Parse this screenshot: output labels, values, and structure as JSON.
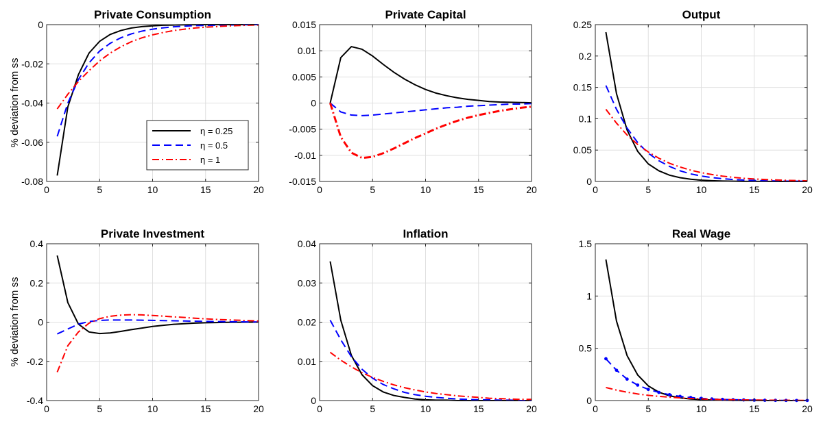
{
  "figure": {
    "ylabel": "% deviation from ss",
    "legend": {
      "entries": [
        "η = 0.25",
        "η = 0.5",
        "η = 1"
      ]
    },
    "series_styles": [
      {
        "color": "#000000",
        "dash": "solid"
      },
      {
        "color": "#0000ff",
        "dash": "dashed"
      },
      {
        "color": "#ff0000",
        "dash": "dashdot"
      }
    ]
  },
  "chart_data": [
    {
      "type": "line",
      "title": "Private Consumption",
      "xlim": [
        0,
        20
      ],
      "ylim": [
        -0.08,
        0
      ],
      "xticks": [
        "0",
        "5",
        "10",
        "15",
        "20"
      ],
      "yticks": [
        -0.08,
        -0.06,
        -0.04,
        -0.02,
        0
      ],
      "ytick_labels": [
        "-0.08",
        "-0.06",
        "-0.04",
        "-0.02",
        "0"
      ],
      "x": [
        1,
        2,
        3,
        4,
        5,
        6,
        7,
        8,
        9,
        10,
        11,
        12,
        13,
        14,
        15,
        16,
        17,
        18,
        19,
        20
      ],
      "series": [
        {
          "name": "η = 0.25",
          "values": [
            -0.077,
            -0.042,
            -0.0255,
            -0.0145,
            -0.0085,
            -0.005,
            -0.003,
            -0.0017,
            -0.001,
            -0.0006,
            -0.0003,
            -0.0002,
            -0.0001,
            -5e-05,
            0,
            0,
            0,
            0,
            0,
            0
          ]
        },
        {
          "name": "η = 0.5",
          "values": [
            -0.057,
            -0.04,
            -0.028,
            -0.0195,
            -0.0135,
            -0.0095,
            -0.0067,
            -0.0047,
            -0.0033,
            -0.0023,
            -0.0016,
            -0.0011,
            -0.0008,
            -0.0005,
            -0.0004,
            -0.0003,
            -0.0002,
            -0.0001,
            -5e-05,
            0
          ]
        },
        {
          "name": "η = 1",
          "values": [
            -0.043,
            -0.0355,
            -0.029,
            -0.0235,
            -0.0185,
            -0.0145,
            -0.0113,
            -0.0087,
            -0.0067,
            -0.0052,
            -0.004,
            -0.003,
            -0.0023,
            -0.0017,
            -0.0013,
            -0.001,
            -0.0007,
            -0.0005,
            -0.0003,
            -0.0002
          ]
        }
      ],
      "legend_location": "lower-right"
    },
    {
      "type": "line",
      "title": "Private Capital",
      "xlim": [
        0,
        20
      ],
      "ylim": [
        -0.015,
        0.015
      ],
      "xticks": [
        "0",
        "5",
        "10",
        "15",
        "20"
      ],
      "yticks": [
        -0.015,
        -0.01,
        -0.005,
        0,
        0.005,
        0.01,
        0.015
      ],
      "ytick_labels": [
        "-0.015",
        "-0.01",
        "-0.005",
        "0",
        "0.005",
        "0.01",
        "0.015"
      ],
      "x": [
        1,
        2,
        3,
        4,
        5,
        6,
        7,
        8,
        9,
        10,
        11,
        12,
        13,
        14,
        15,
        16,
        17,
        18,
        19,
        20
      ],
      "series": [
        {
          "name": "η = 0.25",
          "values": [
            0,
            0.0087,
            0.0108,
            0.0103,
            0.009,
            0.0074,
            0.0059,
            0.0046,
            0.0035,
            0.0026,
            0.0019,
            0.0014,
            0.001,
            0.0007,
            0.0005,
            0.0003,
            0.0002,
            0.00015,
            0.0001,
            5e-05
          ]
        },
        {
          "name": "η = 0.5",
          "values": [
            0,
            -0.0017,
            -0.0023,
            -0.0024,
            -0.0023,
            -0.0021,
            -0.0019,
            -0.0017,
            -0.0015,
            -0.0013,
            -0.0011,
            -0.0009,
            -0.0008,
            -0.0006,
            -0.0005,
            -0.0004,
            -0.0003,
            -0.0002,
            -0.0002,
            -0.0001
          ]
        },
        {
          "name": "η = 1",
          "values": [
            0,
            -0.0065,
            -0.0095,
            -0.0105,
            -0.0103,
            -0.0096,
            -0.0087,
            -0.0077,
            -0.0067,
            -0.0058,
            -0.0049,
            -0.0041,
            -0.0034,
            -0.0028,
            -0.0023,
            -0.0019,
            -0.0015,
            -0.0012,
            -0.0009,
            -0.0007
          ]
        }
      ]
    },
    {
      "type": "line",
      "title": "Output",
      "xlim": [
        0,
        20
      ],
      "ylim": [
        0,
        0.25
      ],
      "xticks": [
        "0",
        "5",
        "10",
        "15",
        "20"
      ],
      "yticks": [
        0,
        0.05,
        0.1,
        0.15,
        0.2,
        0.25
      ],
      "ytick_labels": [
        "0",
        "0.05",
        "0.1",
        "0.15",
        "0.2",
        "0.25"
      ],
      "x": [
        1,
        2,
        3,
        4,
        5,
        6,
        7,
        8,
        9,
        10,
        11,
        12,
        13,
        14,
        15,
        16,
        17,
        18,
        19,
        20
      ],
      "series": [
        {
          "name": "η = 0.25",
          "values": [
            0.238,
            0.14,
            0.082,
            0.048,
            0.028,
            0.017,
            0.01,
            0.006,
            0.0035,
            0.002,
            0.0012,
            0.0007,
            0.0004,
            0.0002,
            0.0001,
            0.0001,
            0,
            0,
            0,
            0
          ]
        },
        {
          "name": "η = 0.5",
          "values": [
            0.153,
            0.115,
            0.085,
            0.062,
            0.045,
            0.033,
            0.024,
            0.017,
            0.012,
            0.0087,
            0.0062,
            0.0044,
            0.0031,
            0.0022,
            0.0016,
            0.0011,
            0.0008,
            0.0005,
            0.0004,
            0.0003
          ]
        },
        {
          "name": "η = 1",
          "values": [
            0.115,
            0.093,
            0.074,
            0.059,
            0.047,
            0.037,
            0.029,
            0.023,
            0.018,
            0.014,
            0.011,
            0.0085,
            0.0066,
            0.0051,
            0.004,
            0.0031,
            0.0024,
            0.0018,
            0.0014,
            0.001
          ]
        }
      ]
    },
    {
      "type": "line",
      "title": "Private Investment",
      "xlim": [
        0,
        20
      ],
      "ylim": [
        -0.4,
        0.4
      ],
      "xticks": [
        "0",
        "5",
        "10",
        "15",
        "20"
      ],
      "yticks": [
        -0.4,
        -0.2,
        0,
        0.2,
        0.4
      ],
      "ytick_labels": [
        "-0.4",
        "-0.2",
        "0",
        "0.2",
        "0.4"
      ],
      "x": [
        1,
        2,
        3,
        4,
        5,
        6,
        7,
        8,
        9,
        10,
        11,
        12,
        13,
        14,
        15,
        16,
        17,
        18,
        19,
        20
      ],
      "series": [
        {
          "name": "η = 0.25",
          "values": [
            0.34,
            0.1,
            -0.01,
            -0.05,
            -0.058,
            -0.055,
            -0.047,
            -0.038,
            -0.03,
            -0.022,
            -0.016,
            -0.011,
            -0.008,
            -0.005,
            -0.003,
            -0.002,
            -0.001,
            -0.0005,
            0,
            0
          ]
        },
        {
          "name": "η = 0.5",
          "values": [
            -0.06,
            -0.035,
            -0.01,
            0.003,
            0.009,
            0.011,
            0.011,
            0.011,
            0.01,
            0.009,
            0.008,
            0.007,
            0.006,
            0.005,
            0.004,
            0.003,
            0.0025,
            0.002,
            0.0015,
            0.001
          ]
        },
        {
          "name": "η = 1",
          "values": [
            -0.255,
            -0.12,
            -0.05,
            -0.005,
            0.018,
            0.03,
            0.036,
            0.038,
            0.037,
            0.034,
            0.031,
            0.027,
            0.024,
            0.02,
            0.017,
            0.014,
            0.012,
            0.01,
            0.008,
            0.006
          ]
        }
      ]
    },
    {
      "type": "line",
      "title": "Inflation",
      "xlim": [
        0,
        20
      ],
      "ylim": [
        0,
        0.04
      ],
      "xticks": [
        "0",
        "5",
        "10",
        "15",
        "20"
      ],
      "yticks": [
        0,
        0.01,
        0.02,
        0.03,
        0.04
      ],
      "ytick_labels": [
        "0",
        "0.01",
        "0.02",
        "0.03",
        "0.04"
      ],
      "x": [
        1,
        2,
        3,
        4,
        5,
        6,
        7,
        8,
        9,
        10,
        11,
        12,
        13,
        14,
        15,
        16,
        17,
        18,
        19,
        20
      ],
      "series": [
        {
          "name": "η = 0.25",
          "values": [
            0.0355,
            0.0205,
            0.0115,
            0.0066,
            0.0038,
            0.0022,
            0.0013,
            0.0008,
            0.0004,
            0.0002,
            0.0001,
            0.0001,
            0,
            0,
            0,
            0,
            0,
            0,
            0,
            0
          ]
        },
        {
          "name": "η = 0.5",
          "values": [
            0.0205,
            0.0155,
            0.0112,
            0.008,
            0.0057,
            0.0041,
            0.003,
            0.0021,
            0.0015,
            0.0011,
            0.0008,
            0.0006,
            0.0004,
            0.0003,
            0.0002,
            0.0002,
            0.0001,
            0.0001,
            0,
            0
          ]
        },
        {
          "name": "η = 1",
          "values": [
            0.0123,
            0.0103,
            0.0086,
            0.0071,
            0.0059,
            0.0049,
            0.004,
            0.0033,
            0.0027,
            0.0022,
            0.0018,
            0.0015,
            0.0012,
            0.001,
            0.0008,
            0.0006,
            0.0005,
            0.0004,
            0.0003,
            0.0003
          ]
        }
      ]
    },
    {
      "type": "line",
      "title": "Real Wage",
      "xlim": [
        0,
        20
      ],
      "ylim": [
        0,
        1.5
      ],
      "xticks": [
        "0",
        "5",
        "10",
        "15",
        "20"
      ],
      "yticks": [
        0,
        0.5,
        1,
        1.5
      ],
      "ytick_labels": [
        "0",
        "0.5",
        "1",
        "1.5"
      ],
      "x": [
        1,
        2,
        3,
        4,
        5,
        6,
        7,
        8,
        9,
        10,
        11,
        12,
        13,
        14,
        15,
        16,
        17,
        18,
        19,
        20
      ],
      "series": [
        {
          "name": "η = 0.25",
          "values": [
            1.35,
            0.76,
            0.43,
            0.245,
            0.14,
            0.08,
            0.046,
            0.026,
            0.015,
            0.009,
            0.005,
            0.003,
            0.002,
            0.001,
            0.0005,
            0,
            0,
            0,
            0,
            0
          ]
        },
        {
          "name": "η = 0.5",
          "values": [
            0.4,
            0.29,
            0.205,
            0.148,
            0.107,
            0.078,
            0.056,
            0.04,
            0.029,
            0.021,
            0.015,
            0.011,
            0.008,
            0.006,
            0.004,
            0.003,
            0.002,
            0.0015,
            0.001,
            0.001
          ],
          "markers": true
        },
        {
          "name": "η = 1",
          "values": [
            0.125,
            0.1,
            0.08,
            0.063,
            0.05,
            0.04,
            0.032,
            0.025,
            0.02,
            0.016,
            0.012,
            0.01,
            0.008,
            0.006,
            0.005,
            0.004,
            0.003,
            0.0024,
            0.0019,
            0.0015
          ]
        }
      ]
    }
  ]
}
